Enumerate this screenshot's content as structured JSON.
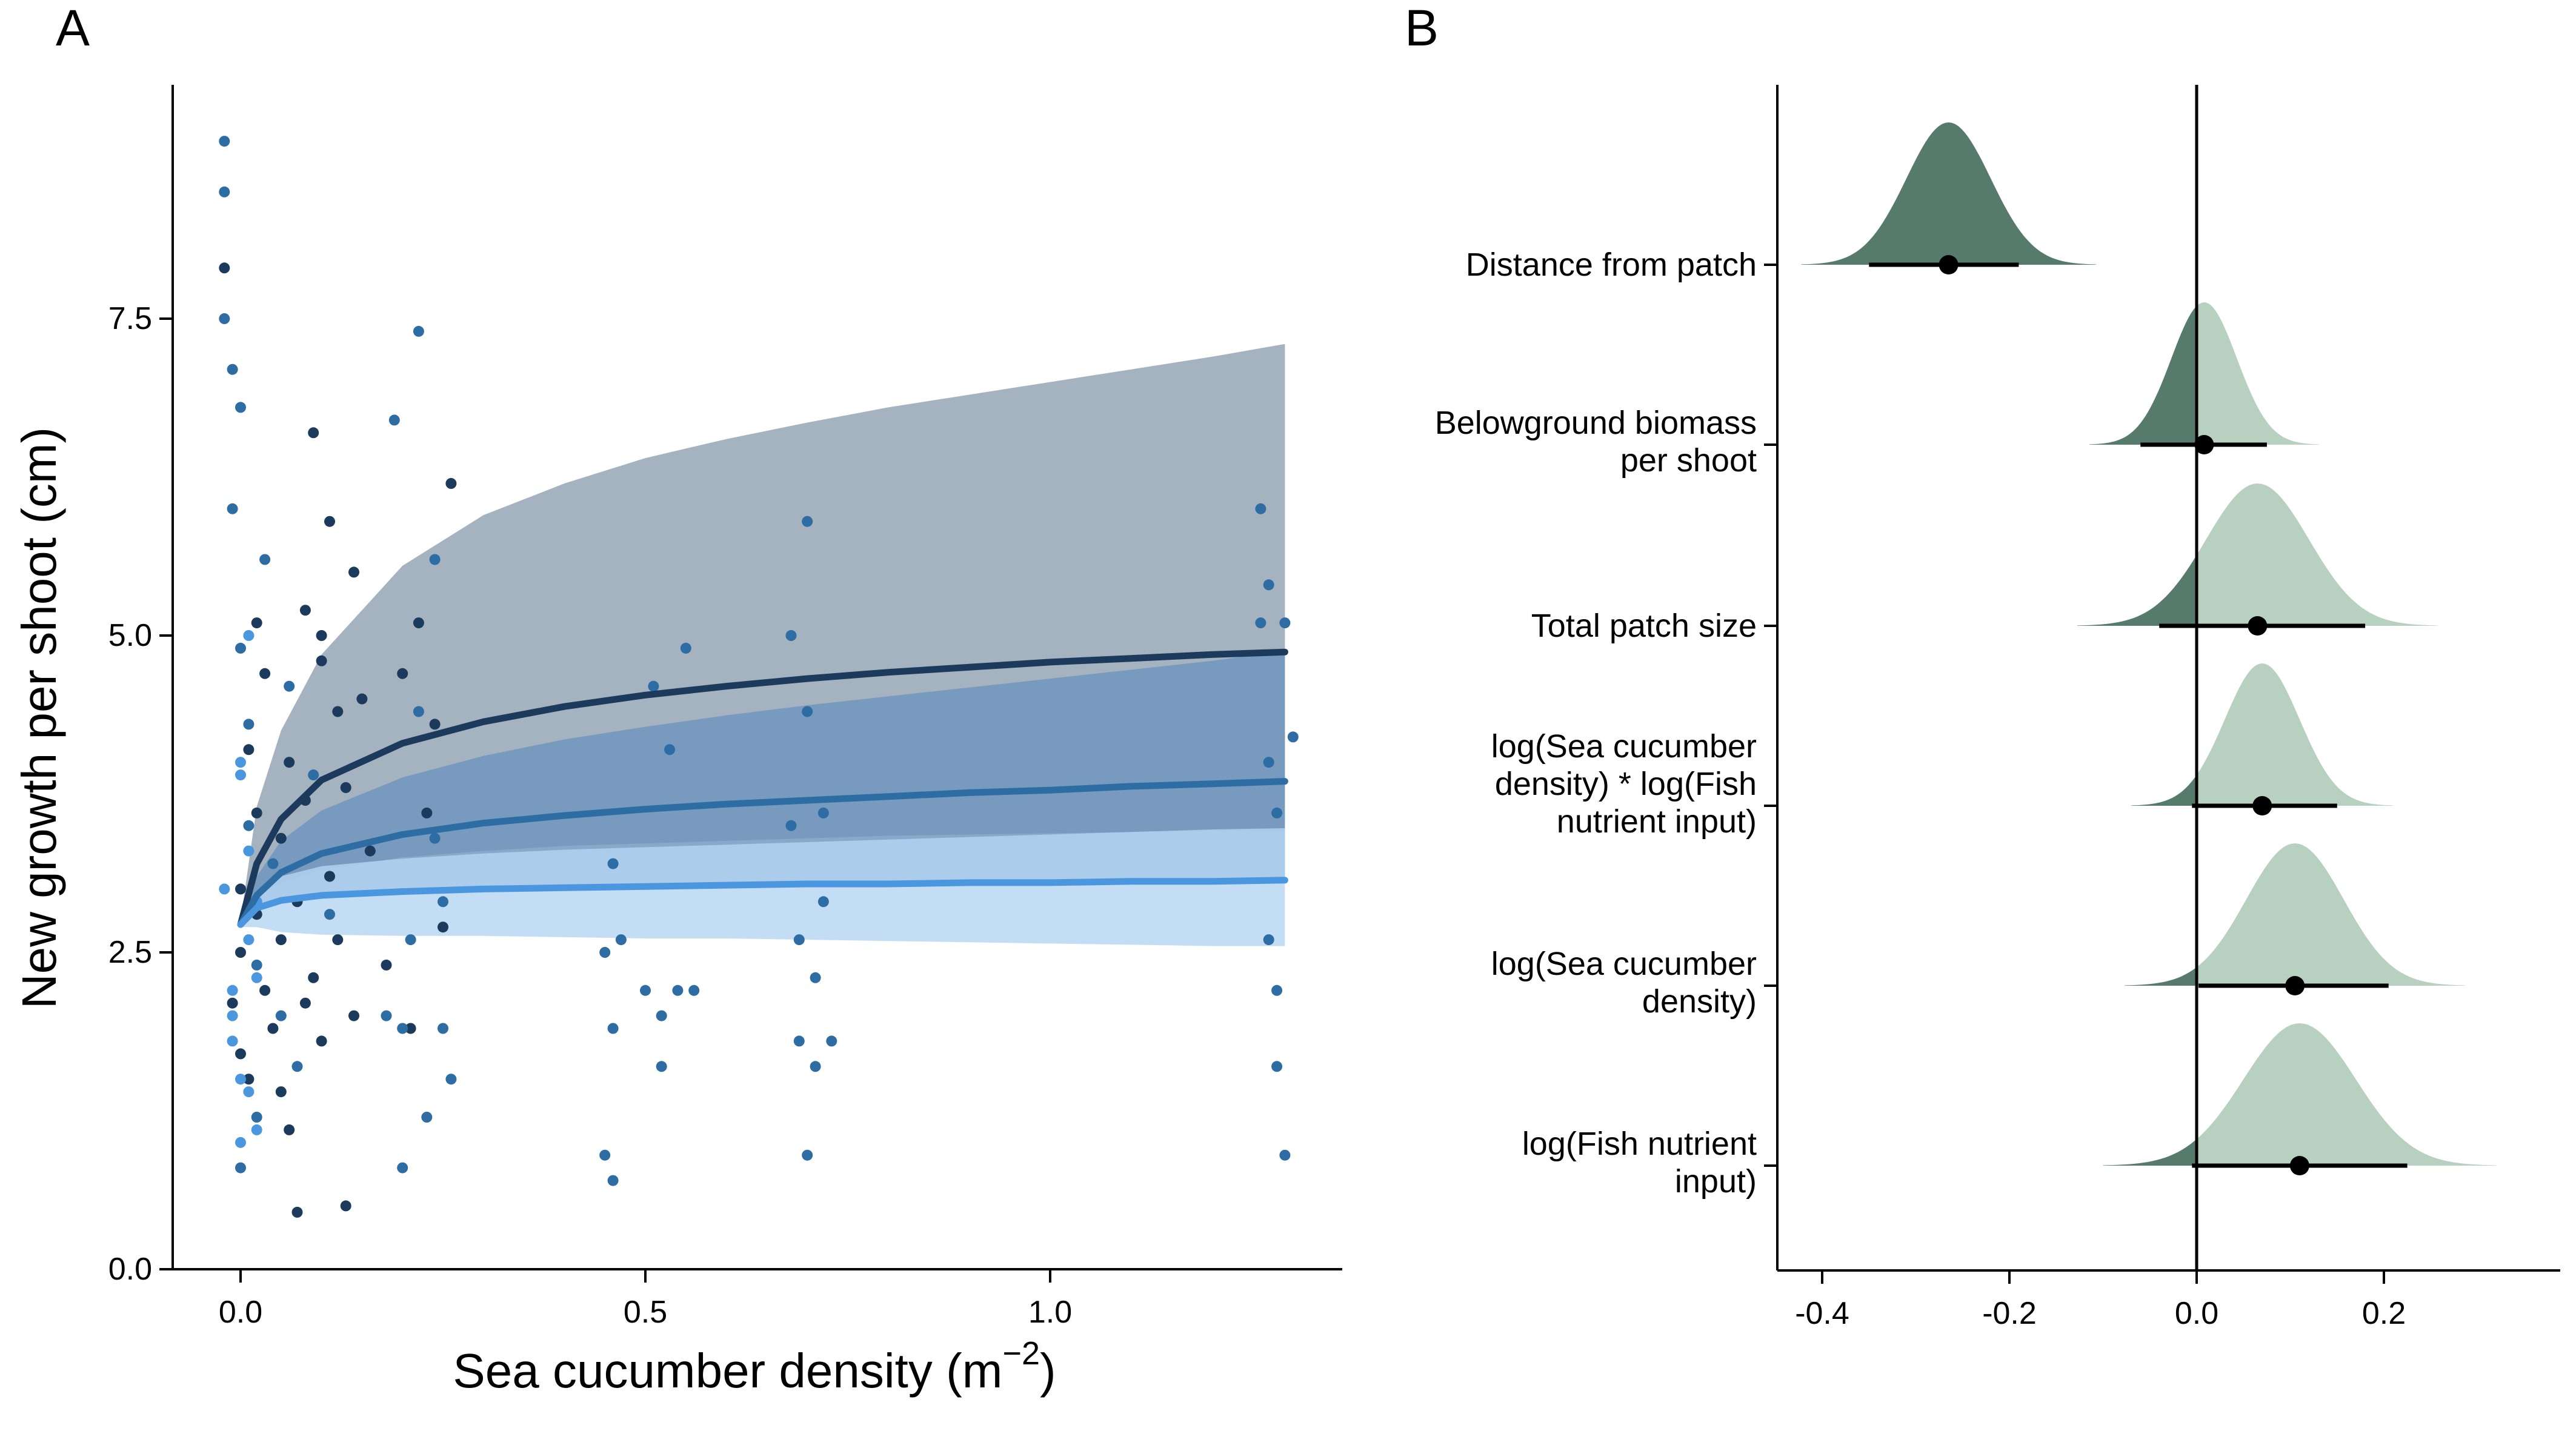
{
  "panels": {
    "a_letter": "A",
    "b_letter": "B"
  },
  "chart_data": [
    {
      "panel": "A",
      "type": "scatter",
      "xlabel_base": "Sea cucumber density (m",
      "xlabel_sup": "−2",
      "xlabel_end": ")",
      "ylabel": "New growth per shoot (cm)",
      "xlim": [
        -0.1,
        1.36
      ],
      "ylim": [
        -0.05,
        9.2
      ],
      "x_ticks": [
        0.0,
        0.5,
        1.0
      ],
      "x_tick_labels": [
        "0.0",
        "0.5",
        "1.0"
      ],
      "y_ticks": [
        0.0,
        2.5,
        5.0,
        7.5
      ],
      "y_tick_labels": [
        "0.0",
        "2.5",
        "5.0",
        "7.5"
      ],
      "grid": false,
      "legend": "none",
      "series": [
        {
          "color": "#1b3a5c",
          "band_color": "#8f9fb0",
          "fit_x": [
            0.0,
            0.02,
            0.05,
            0.1,
            0.2,
            0.3,
            0.4,
            0.5,
            0.6,
            0.7,
            0.8,
            0.9,
            1.0,
            1.1,
            1.2,
            1.29
          ],
          "fit_y": [
            2.72,
            3.2,
            3.55,
            3.86,
            4.15,
            4.32,
            4.44,
            4.53,
            4.6,
            4.66,
            4.71,
            4.75,
            4.79,
            4.82,
            4.85,
            4.87
          ],
          "band_lower": [
            2.7,
            2.95,
            3.05,
            3.15,
            3.25,
            3.3,
            3.34,
            3.36,
            3.38,
            3.4,
            3.42,
            3.43,
            3.44,
            3.45,
            3.46,
            3.46
          ],
          "band_upper": [
            2.75,
            3.65,
            4.25,
            4.85,
            5.55,
            5.95,
            6.2,
            6.4,
            6.55,
            6.68,
            6.8,
            6.9,
            7.0,
            7.1,
            7.2,
            7.3
          ],
          "points": [
            [
              -0.01,
              2.1
            ],
            [
              0.0,
              1.7
            ],
            [
              0.0,
              2.5
            ],
            [
              0.0,
              3.0
            ],
            [
              0.01,
              4.1
            ],
            [
              0.01,
              1.5
            ],
            [
              0.02,
              2.8
            ],
            [
              0.02,
              3.6
            ],
            [
              0.02,
              5.1
            ],
            [
              0.03,
              2.2
            ],
            [
              0.04,
              1.9
            ],
            [
              0.05,
              3.4
            ],
            [
              0.05,
              2.6
            ],
            [
              0.06,
              4.0
            ],
            [
              0.06,
              1.1
            ],
            [
              0.07,
              2.9
            ],
            [
              0.07,
              0.45
            ],
            [
              0.08,
              5.2
            ],
            [
              0.08,
              3.7
            ],
            [
              0.09,
              2.3
            ],
            [
              0.09,
              6.6
            ],
            [
              0.1,
              4.8
            ],
            [
              0.1,
              1.8
            ],
            [
              0.11,
              3.1
            ],
            [
              0.11,
              5.9
            ],
            [
              0.12,
              2.6
            ],
            [
              0.12,
              4.4
            ],
            [
              0.13,
              0.5
            ],
            [
              0.13,
              3.8
            ],
            [
              0.14,
              5.5
            ],
            [
              0.14,
              2.0
            ],
            [
              0.15,
              4.5
            ],
            [
              0.16,
              3.3
            ],
            [
              0.18,
              2.4
            ],
            [
              0.2,
              4.7
            ],
            [
              0.21,
              1.9
            ],
            [
              0.22,
              5.1
            ],
            [
              0.23,
              3.6
            ],
            [
              0.24,
              4.3
            ],
            [
              0.25,
              2.7
            ],
            [
              0.26,
              6.2
            ],
            [
              -0.02,
              7.9
            ],
            [
              0.03,
              4.7
            ],
            [
              0.05,
              1.4
            ],
            [
              0.08,
              2.1
            ],
            [
              0.1,
              5.0
            ]
          ]
        },
        {
          "color": "#2e6ca4",
          "band_color": "#6b93bd",
          "fit_x": [
            0.0,
            0.02,
            0.05,
            0.1,
            0.2,
            0.3,
            0.4,
            0.5,
            0.6,
            0.7,
            0.8,
            0.9,
            1.0,
            1.1,
            1.2,
            1.29
          ],
          "fit_y": [
            2.72,
            2.95,
            3.13,
            3.28,
            3.43,
            3.52,
            3.58,
            3.63,
            3.67,
            3.7,
            3.73,
            3.76,
            3.78,
            3.81,
            3.83,
            3.85
          ],
          "band_lower": [
            2.7,
            2.85,
            2.9,
            2.94,
            2.97,
            3.0,
            3.01,
            3.02,
            3.03,
            3.04,
            3.05,
            3.06,
            3.07,
            3.08,
            3.08,
            3.08
          ],
          "band_upper": [
            2.75,
            3.1,
            3.38,
            3.62,
            3.88,
            4.05,
            4.18,
            4.28,
            4.37,
            4.45,
            4.52,
            4.59,
            4.66,
            4.73,
            4.8,
            4.88
          ],
          "points": [
            [
              -0.02,
              8.9
            ],
            [
              -0.02,
              8.5
            ],
            [
              -0.02,
              7.5
            ],
            [
              -0.01,
              7.1
            ],
            [
              0.0,
              6.8
            ],
            [
              -0.01,
              6.0
            ],
            [
              0.0,
              4.9
            ],
            [
              0.01,
              4.3
            ],
            [
              0.01,
              3.5
            ],
            [
              0.02,
              2.4
            ],
            [
              0.02,
              1.2
            ],
            [
              0.0,
              0.8
            ],
            [
              0.03,
              5.6
            ],
            [
              0.04,
              3.2
            ],
            [
              0.05,
              2.0
            ],
            [
              0.06,
              4.6
            ],
            [
              0.07,
              1.6
            ],
            [
              0.09,
              3.9
            ],
            [
              0.11,
              2.8
            ],
            [
              0.18,
              2.0
            ],
            [
              0.19,
              6.7
            ],
            [
              0.2,
              1.9
            ],
            [
              0.2,
              0.8
            ],
            [
              0.21,
              2.6
            ],
            [
              0.22,
              4.4
            ],
            [
              0.22,
              7.4
            ],
            [
              0.23,
              1.2
            ],
            [
              0.24,
              3.4
            ],
            [
              0.24,
              5.6
            ],
            [
              0.25,
              1.9
            ],
            [
              0.25,
              2.9
            ],
            [
              0.26,
              1.5
            ],
            [
              0.45,
              0.9
            ],
            [
              0.45,
              2.5
            ],
            [
              0.46,
              3.2
            ],
            [
              0.46,
              1.9
            ],
            [
              0.46,
              0.7
            ],
            [
              0.47,
              2.6
            ],
            [
              0.5,
              2.2
            ],
            [
              0.51,
              4.6
            ],
            [
              0.52,
              2.0
            ],
            [
              0.52,
              1.6
            ],
            [
              0.53,
              4.1
            ],
            [
              0.54,
              2.2
            ],
            [
              0.55,
              4.9
            ],
            [
              0.56,
              2.2
            ],
            [
              0.68,
              3.5
            ],
            [
              0.68,
              5.0
            ],
            [
              0.69,
              2.6
            ],
            [
              0.69,
              1.8
            ],
            [
              0.7,
              4.4
            ],
            [
              0.7,
              5.9
            ],
            [
              0.7,
              0.9
            ],
            [
              0.71,
              2.3
            ],
            [
              0.71,
              1.6
            ],
            [
              0.72,
              2.9
            ],
            [
              0.72,
              3.6
            ],
            [
              0.73,
              1.8
            ],
            [
              1.26,
              6.0
            ],
            [
              1.26,
              5.1
            ],
            [
              1.27,
              4.0
            ],
            [
              1.27,
              2.6
            ],
            [
              1.27,
              5.4
            ],
            [
              1.28,
              2.2
            ],
            [
              1.28,
              1.6
            ],
            [
              1.28,
              3.6
            ],
            [
              1.29,
              5.1
            ],
            [
              1.29,
              0.9
            ],
            [
              1.3,
              4.2
            ]
          ]
        },
        {
          "color": "#4a97e0",
          "band_color": "#b4d4f3",
          "fit_x": [
            0.0,
            0.02,
            0.05,
            0.1,
            0.2,
            0.3,
            0.4,
            0.5,
            0.6,
            0.7,
            0.8,
            0.9,
            1.0,
            1.1,
            1.2,
            1.29
          ],
          "fit_y": [
            2.72,
            2.85,
            2.91,
            2.95,
            2.98,
            3.0,
            3.01,
            3.02,
            3.03,
            3.04,
            3.04,
            3.05,
            3.05,
            3.06,
            3.06,
            3.07
          ],
          "band_lower": [
            2.7,
            2.7,
            2.66,
            2.64,
            2.63,
            2.63,
            2.62,
            2.61,
            2.61,
            2.6,
            2.59,
            2.58,
            2.57,
            2.56,
            2.55,
            2.55
          ],
          "band_upper": [
            2.75,
            2.98,
            3.1,
            3.18,
            3.24,
            3.28,
            3.31,
            3.33,
            3.35,
            3.37,
            3.39,
            3.41,
            3.43,
            3.45,
            3.47,
            3.48
          ],
          "points": [
            [
              -0.02,
              3.0
            ],
            [
              -0.01,
              1.8
            ],
            [
              -0.01,
              2.2
            ],
            [
              0.0,
              3.9
            ],
            [
              0.0,
              1.0
            ],
            [
              0.01,
              2.6
            ],
            [
              0.01,
              1.4
            ],
            [
              0.02,
              2.9
            ],
            [
              0.0,
              4.0
            ],
            [
              0.02,
              1.1
            ],
            [
              -0.01,
              2.0
            ],
            [
              0.01,
              3.3
            ],
            [
              0.01,
              5.0
            ],
            [
              0.0,
              1.5
            ],
            [
              0.02,
              2.3
            ]
          ]
        }
      ]
    },
    {
      "panel": "B",
      "type": "area",
      "xlim": [
        -0.45,
        0.38
      ],
      "x_ticks": [
        -0.4,
        -0.2,
        0.0,
        0.2
      ],
      "x_tick_labels": [
        "-0.4",
        "-0.2",
        "0.0",
        "0.2"
      ],
      "zero_line": 0.0,
      "grid": false,
      "legend": "none",
      "dark_color": "#567b6c",
      "light_color": "#b8d0bf",
      "rows": [
        {
          "label_lines": [
            "Distance from patch"
          ],
          "mean": -0.265,
          "sd": 0.045,
          "ci_low": -0.35,
          "ci_high": -0.19
        },
        {
          "label_lines": [
            "Belowground biomass",
            "per shoot"
          ],
          "mean": 0.008,
          "sd": 0.035,
          "ci_low": -0.06,
          "ci_high": 0.075
        },
        {
          "label_lines": [
            "Total patch size"
          ],
          "mean": 0.065,
          "sd": 0.055,
          "ci_low": -0.04,
          "ci_high": 0.18
        },
        {
          "label_lines": [
            "log(Sea cucumber",
            "density) * log(Fish",
            "nutrient input)"
          ],
          "mean": 0.07,
          "sd": 0.04,
          "ci_low": -0.005,
          "ci_high": 0.15
        },
        {
          "label_lines": [
            "log(Sea cucumber",
            "density)"
          ],
          "mean": 0.105,
          "sd": 0.052,
          "ci_low": 0.002,
          "ci_high": 0.205
        },
        {
          "label_lines": [
            "log(Fish nutrient",
            "input)"
          ],
          "mean": 0.11,
          "sd": 0.06,
          "ci_low": -0.005,
          "ci_high": 0.225
        }
      ]
    }
  ]
}
